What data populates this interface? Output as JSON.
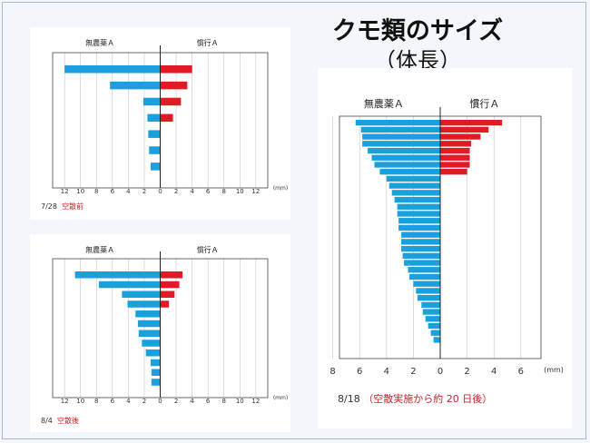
{
  "title": {
    "line1": "クモ類のサイズ",
    "line2": "（体長）"
  },
  "colors": {
    "left_series": "#1aa0dc",
    "right_series": "#e01b26",
    "grid": "#bfc6cf",
    "axis": "#444444"
  },
  "chart_data": [
    {
      "type": "bar",
      "orientation": "horizontal-butterfly",
      "caption_date": "7/28",
      "caption_note": "空散前",
      "series": [
        {
          "name": "無農薬Ａ",
          "side": "left",
          "values": [
            12,
            6.3,
            2.1,
            1.6,
            1.5,
            1.4,
            1.2
          ]
        },
        {
          "name": "慣行Ａ",
          "side": "right",
          "values": [
            4.0,
            3.4,
            2.6,
            1.6,
            0,
            0,
            0
          ]
        }
      ],
      "xticks": [
        "12",
        "10",
        "8",
        "6",
        "4",
        "2",
        "0",
        "2",
        "4",
        "6",
        "8",
        "10",
        "12"
      ],
      "xlim": [
        -13.5,
        13.5
      ],
      "unit": "(mm)",
      "grid": true
    },
    {
      "type": "bar",
      "orientation": "horizontal-butterfly",
      "caption_date": "8/4",
      "caption_note": "空散後",
      "series": [
        {
          "name": "無農薬Ａ",
          "side": "left",
          "values": [
            10.7,
            7.7,
            4.8,
            4.1,
            3.1,
            2.8,
            2.7,
            2.3,
            1.8,
            1.2,
            1.1,
            1.1
          ]
        },
        {
          "name": "慣行Ａ",
          "side": "right",
          "values": [
            2.8,
            2.4,
            1.8,
            1.1,
            0,
            0,
            0,
            0,
            0,
            0,
            0,
            0
          ]
        }
      ],
      "xticks": [
        "12",
        "10",
        "8",
        "6",
        "4",
        "2",
        "0",
        "2",
        "4",
        "6",
        "8",
        "10",
        "12"
      ],
      "xlim": [
        -13.5,
        13.5
      ],
      "unit": "(mm)",
      "grid": true
    },
    {
      "type": "bar",
      "orientation": "horizontal-butterfly",
      "caption_date": "8/18",
      "caption_note": "（空散実施から約 20 日後）",
      "series": [
        {
          "name": "無農薬Ａ",
          "side": "left",
          "values": [
            6.3,
            5.9,
            5.8,
            5.8,
            5.4,
            5.1,
            4.9,
            4.5,
            4.0,
            3.8,
            3.6,
            3.4,
            3.2,
            3.2,
            3.1,
            3.1,
            2.9,
            2.9,
            2.9,
            2.8,
            2.7,
            2.4,
            2.3,
            2.0,
            1.8,
            1.7,
            1.4,
            1.3,
            1.1,
            0.9,
            0.7,
            0.5
          ]
        },
        {
          "name": "慣行Ａ",
          "side": "right",
          "values": [
            4.6,
            3.6,
            3.0,
            2.3,
            2.2,
            2.2,
            2.2,
            2.0,
            0,
            0,
            0,
            0,
            0,
            0,
            0,
            0,
            0,
            0,
            0,
            0,
            0,
            0,
            0,
            0,
            0,
            0,
            0,
            0,
            0,
            0,
            0,
            0
          ]
        }
      ],
      "xticks": [
        "8",
        "6",
        "4",
        "2",
        "0",
        "2",
        "4",
        "6"
      ],
      "xlim": [
        -7.5,
        7.5
      ],
      "unit": "(mm)",
      "grid": true
    }
  ]
}
